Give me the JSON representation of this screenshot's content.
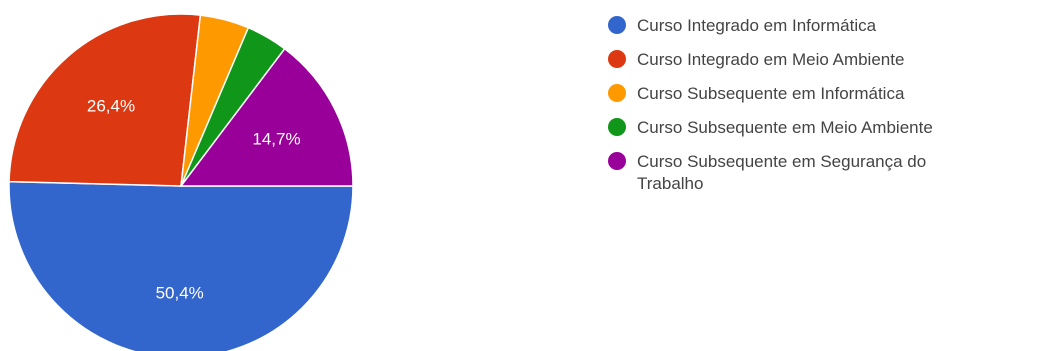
{
  "chart_data": {
    "type": "pie",
    "categories": [
      "Curso Integrado em Informática",
      "Curso Integrado em Meio Ambiente",
      "Curso Subsequente em Informática",
      "Curso Subsequente em Meio Ambiente",
      "Curso Subsequente em Segurança do Trabalho"
    ],
    "values": [
      50.4,
      26.4,
      4.6,
      3.9,
      14.7
    ],
    "data_labels": [
      "50,4%",
      "26,4%",
      "",
      "",
      "14,7%"
    ],
    "colors": [
      "#3366cc",
      "#dc3912",
      "#ff9900",
      "#109618",
      "#990099"
    ],
    "legend_lines": [
      [
        "Curso Integrado em Informática"
      ],
      [
        "Curso Integrado em Meio Ambiente"
      ],
      [
        "Curso Subsequente em Informática"
      ],
      [
        "Curso Subsequente em Meio Ambiente"
      ],
      [
        "Curso Subsequente em Segurança do",
        "Trabalho"
      ]
    ],
    "legend_position": "right",
    "start_angle_deg": 90,
    "direction": "clockwise-from-right"
  }
}
